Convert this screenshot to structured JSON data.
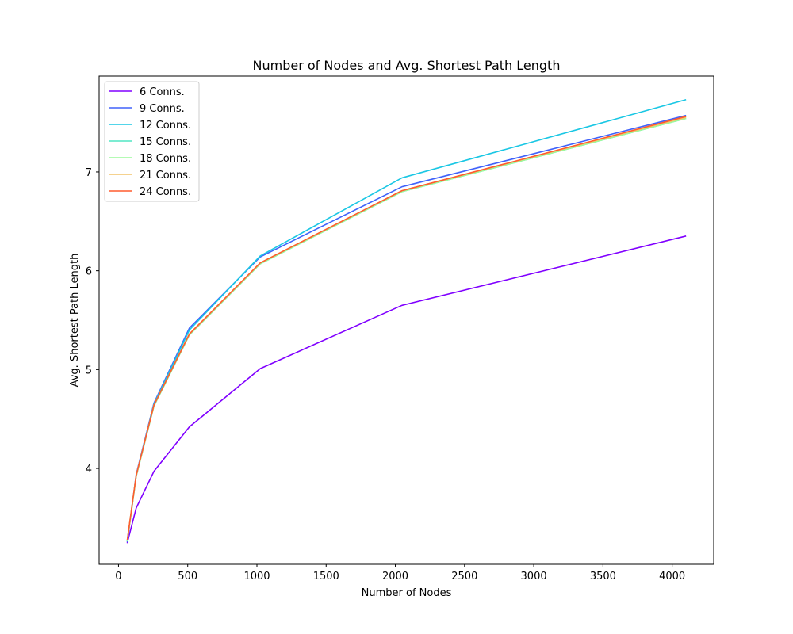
{
  "chart_data": {
    "type": "line",
    "title": "Number of Nodes and Avg. Shortest Path Length",
    "xlabel": "Number of Nodes",
    "ylabel": "Avg. Shortest Path Length",
    "xlim": [
      -140,
      4300
    ],
    "ylim": [
      3.03,
      7.97
    ],
    "xticks": [
      0,
      500,
      1000,
      1500,
      2000,
      2500,
      3000,
      3500,
      4000
    ],
    "yticks": [
      4,
      5,
      6,
      7
    ],
    "grid": false,
    "legend_position": "top-left",
    "x": [
      64,
      128,
      256,
      512,
      1024,
      2048,
      4096
    ],
    "series": [
      {
        "name": "6 Conns.",
        "color": "#8000ff",
        "values": [
          3.25,
          3.6,
          3.97,
          4.42,
          5.01,
          5.65,
          6.35
        ]
      },
      {
        "name": "9 Conns.",
        "color": "#4062fa",
        "values": [
          3.26,
          3.94,
          4.66,
          5.42,
          6.14,
          6.85,
          7.57
        ]
      },
      {
        "name": "12 Conns.",
        "color": "#1ac7e4",
        "values": [
          3.27,
          3.93,
          4.65,
          5.4,
          6.15,
          6.94,
          7.73
        ]
      },
      {
        "name": "15 Conns.",
        "color": "#50e6c4",
        "values": [
          3.27,
          3.92,
          4.63,
          5.35,
          6.07,
          6.8,
          7.54
        ]
      },
      {
        "name": "18 Conns.",
        "color": "#9cfa9c",
        "values": [
          3.27,
          3.92,
          4.63,
          5.35,
          6.07,
          6.8,
          7.54
        ]
      },
      {
        "name": "21 Conns.",
        "color": "#f2c46a",
        "values": [
          3.28,
          3.93,
          4.64,
          5.36,
          6.08,
          6.81,
          7.55
        ]
      },
      {
        "name": "24 Conns.",
        "color": "#ff5c2e",
        "values": [
          3.28,
          3.93,
          4.64,
          5.36,
          6.08,
          6.81,
          7.56
        ]
      }
    ]
  }
}
